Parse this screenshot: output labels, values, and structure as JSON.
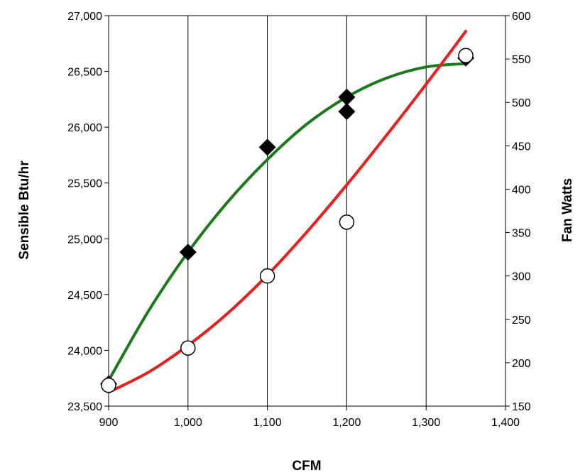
{
  "chart_data": {
    "type": "scatter",
    "xlabel": "CFM",
    "ylabel_left": "Sensible Btu/hr",
    "ylabel_right": "Fan Watts",
    "xlim": [
      900,
      1400
    ],
    "xticks": [
      900,
      1000,
      1100,
      1200,
      1300,
      1400
    ],
    "xtick_labels": [
      "900",
      "1,000",
      "1,100",
      "1,200",
      "1,300",
      "1,400"
    ],
    "ylim_left": [
      23500,
      27000
    ],
    "yticks_left": [
      23500,
      24000,
      24500,
      25000,
      25500,
      26000,
      26500,
      27000
    ],
    "ytick_labels_left": [
      "23,500",
      "24,000",
      "24,500",
      "25,000",
      "25,500",
      "26,000",
      "26,500",
      "27,000"
    ],
    "ylim_right": [
      150,
      600
    ],
    "yticks_right": [
      150,
      200,
      250,
      300,
      350,
      400,
      450,
      500,
      550,
      600
    ],
    "ytick_labels_right": [
      "150",
      "200",
      "250",
      "300",
      "350",
      "400",
      "450",
      "500",
      "550",
      "600"
    ],
    "grid": "vertical",
    "legend": "none",
    "series": [
      {
        "axis": "left",
        "marker": "diamond",
        "marker_color": "#000000",
        "points": [
          {
            "x": 900,
            "y": 23700
          },
          {
            "x": 1000,
            "y": 24880
          },
          {
            "x": 1100,
            "y": 25820
          },
          {
            "x": 1200,
            "y": 26270
          },
          {
            "x": 1200,
            "y": 26140
          },
          {
            "x": 1350,
            "y": 26620
          }
        ],
        "trend_color": "#1a7a1a",
        "trend": [
          {
            "x": 900,
            "y": 23730
          },
          {
            "x": 950,
            "y": 24350
          },
          {
            "x": 1000,
            "y": 24880
          },
          {
            "x": 1050,
            "y": 25330
          },
          {
            "x": 1100,
            "y": 25710
          },
          {
            "x": 1150,
            "y": 26030
          },
          {
            "x": 1200,
            "y": 26270
          },
          {
            "x": 1250,
            "y": 26440
          },
          {
            "x": 1300,
            "y": 26540
          },
          {
            "x": 1350,
            "y": 26570
          }
        ]
      },
      {
        "axis": "right",
        "marker": "open-circle",
        "marker_color": "#000000",
        "points": [
          {
            "x": 900,
            "y": 174
          },
          {
            "x": 1000,
            "y": 217
          },
          {
            "x": 1100,
            "y": 300
          },
          {
            "x": 1200,
            "y": 362
          },
          {
            "x": 1350,
            "y": 554
          }
        ],
        "trend_color": "#ee1c1c",
        "trend": [
          {
            "x": 900,
            "y": 166
          },
          {
            "x": 950,
            "y": 189
          },
          {
            "x": 1000,
            "y": 220
          },
          {
            "x": 1050,
            "y": 257
          },
          {
            "x": 1100,
            "y": 301
          },
          {
            "x": 1150,
            "y": 351
          },
          {
            "x": 1200,
            "y": 405
          },
          {
            "x": 1250,
            "y": 462
          },
          {
            "x": 1300,
            "y": 521
          },
          {
            "x": 1350,
            "y": 582
          }
        ]
      }
    ]
  }
}
